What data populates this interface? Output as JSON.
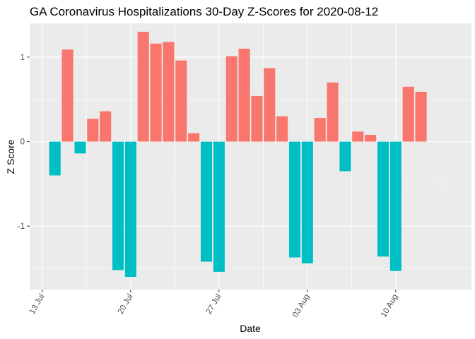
{
  "chart_data": {
    "type": "bar",
    "title": "GA Coronavirus Hospitalizations 30-Day Z-Scores for 2020-08-12",
    "xlabel": "Date",
    "ylabel": "Z Score",
    "x_ticks": [
      {
        "date": "2020-07-13",
        "label": "13 Jul"
      },
      {
        "date": "2020-07-20",
        "label": "20 Jul"
      },
      {
        "date": "2020-07-27",
        "label": "27 Jul"
      },
      {
        "date": "2020-08-03",
        "label": "03 Aug"
      },
      {
        "date": "2020-08-10",
        "label": "10 Aug"
      }
    ],
    "y_ticks": [
      -1,
      0,
      1
    ],
    "xlim": [
      "2020-07-12",
      "2020-08-16"
    ],
    "ylim": [
      -1.75,
      1.4
    ],
    "grid": true,
    "legend": "none",
    "colors": {
      "positive": "#F8766D",
      "negative": "#00BFC4",
      "panel": "#EBEBEB",
      "grid": "#FFFFFF"
    },
    "dates": [
      "2020-07-14",
      "2020-07-15",
      "2020-07-16",
      "2020-07-17",
      "2020-07-18",
      "2020-07-19",
      "2020-07-20",
      "2020-07-21",
      "2020-07-22",
      "2020-07-23",
      "2020-07-24",
      "2020-07-25",
      "2020-07-26",
      "2020-07-27",
      "2020-07-28",
      "2020-07-29",
      "2020-07-30",
      "2020-07-31",
      "2020-08-01",
      "2020-08-02",
      "2020-08-03",
      "2020-08-04",
      "2020-08-05",
      "2020-08-06",
      "2020-08-07",
      "2020-08-08",
      "2020-08-09",
      "2020-08-10",
      "2020-08-11",
      "2020-08-12"
    ],
    "values": [
      -0.4,
      1.09,
      -0.14,
      0.27,
      0.36,
      -1.52,
      -1.6,
      1.3,
      1.16,
      1.18,
      0.96,
      0.1,
      -1.42,
      -1.54,
      1.01,
      1.1,
      0.54,
      0.87,
      0.3,
      -1.37,
      -1.44,
      0.28,
      0.7,
      -0.35,
      0.12,
      0.08,
      -1.36,
      -1.53,
      0.65,
      0.59
    ]
  }
}
